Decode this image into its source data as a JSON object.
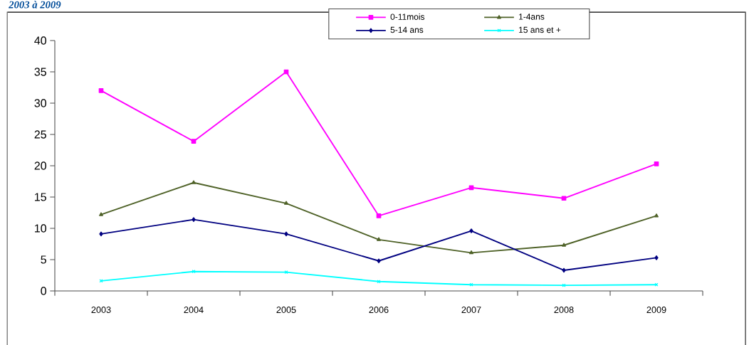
{
  "chart_data": {
    "type": "line",
    "title": "2003 à 2009",
    "categories": [
      "2003",
      "2004",
      "2005",
      "2006",
      "2007",
      "2008",
      "2009"
    ],
    "series": [
      {
        "name": "0-11mois",
        "color": "#ff00ff",
        "marker": "square",
        "values": [
          32.0,
          23.9,
          35.0,
          12.0,
          16.5,
          14.8,
          20.3
        ]
      },
      {
        "name": "1-4ans",
        "color": "#4f6228",
        "marker": "triangle",
        "values": [
          12.2,
          17.3,
          14.0,
          8.2,
          6.1,
          7.3,
          12.0
        ]
      },
      {
        "name": "5-14 ans",
        "color": "#000080",
        "marker": "diamond",
        "values": [
          9.1,
          11.4,
          9.1,
          4.8,
          9.6,
          3.3,
          5.3
        ]
      },
      {
        "name": "15 ans et +",
        "color": "#00ffff",
        "marker": "cross",
        "values": [
          1.6,
          3.1,
          3.0,
          1.5,
          1.0,
          0.9,
          1.0
        ]
      }
    ],
    "ylim": [
      0,
      40
    ],
    "yticks": [
      0,
      5,
      10,
      15,
      20,
      25,
      30,
      35,
      40
    ],
    "grid": false,
    "legend": "top"
  }
}
